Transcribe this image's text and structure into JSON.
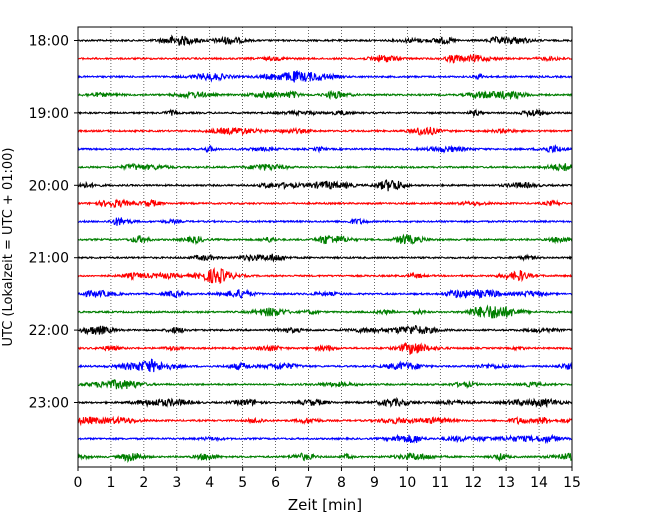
{
  "chart_data": {
    "type": "line",
    "title": "",
    "xlabel": "Zeit  [min]",
    "ylabel": "UTC (Lokalzeit = UTC + 01:00)",
    "xlim": [
      0,
      15
    ],
    "x_ticks": [
      "0",
      "1",
      "2",
      "3",
      "4",
      "5",
      "6",
      "7",
      "8",
      "9",
      "10",
      "11",
      "12",
      "13",
      "14",
      "15"
    ],
    "y_ticks": [
      "18:00",
      "19:00",
      "20:00",
      "21:00",
      "22:00",
      "23:00"
    ],
    "trace_interval_minutes": 15,
    "trace_start": "18:00",
    "trace_end": "23:45",
    "trace_count": 24,
    "colors": [
      "#000000",
      "#ff0000",
      "#0000ff",
      "#007f00"
    ],
    "grid": "vertical dotted at each minute"
  }
}
